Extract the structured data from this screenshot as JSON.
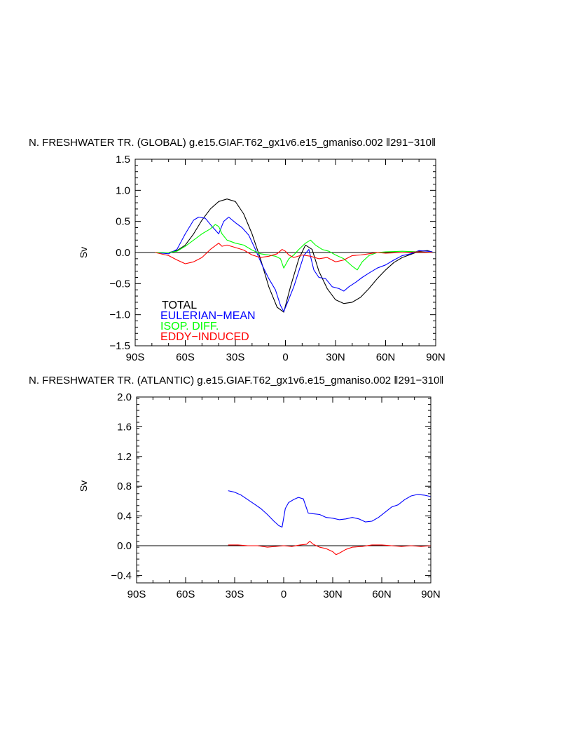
{
  "chart_data": [
    {
      "type": "line",
      "title": "N. FRESHWATER TR. (GLOBAL) g.e15.GIAF.T62_gx1v6.e15_gmaniso.002 ‖291−310‖",
      "xlabel": "",
      "ylabel": "Sv",
      "xlim": [
        -90,
        90
      ],
      "ylim": [
        -1.5,
        1.5
      ],
      "xticks": [
        -90,
        -60,
        -30,
        0,
        30,
        60,
        90
      ],
      "xtick_labels": [
        "90S",
        "60S",
        "30S",
        "0",
        "30N",
        "60N",
        "90N"
      ],
      "yticks": [
        -1.5,
        -1.0,
        -0.5,
        0.0,
        0.5,
        1.0,
        1.5
      ],
      "ytick_labels": [
        "−1.5",
        "−1.0",
        "−0.5",
        "0.0",
        "0.5",
        "1.0",
        "1.5"
      ],
      "legend": [
        {
          "label": "TOTAL",
          "color": "#000000"
        },
        {
          "label": "EULERIAN−MEAN",
          "color": "#0000ff"
        },
        {
          "label": "ISOP. DIFF.",
          "color": "#00ff00"
        },
        {
          "label": "EDDY−INDUCED",
          "color": "#ff0000"
        }
      ],
      "series": [
        {
          "name": "TOTAL",
          "color": "#000000",
          "x": [
            -78,
            -70,
            -65,
            -60,
            -55,
            -50,
            -45,
            -40,
            -35,
            -30,
            -25,
            -20,
            -15,
            -10,
            -5,
            -1,
            3,
            8,
            12,
            16,
            20,
            25,
            30,
            35,
            40,
            45,
            50,
            55,
            60,
            65,
            70,
            75,
            80,
            85,
            88
          ],
          "y": [
            0,
            0,
            0.03,
            0.12,
            0.3,
            0.52,
            0.7,
            0.82,
            0.86,
            0.82,
            0.62,
            0.3,
            -0.1,
            -0.55,
            -0.88,
            -0.96,
            -0.55,
            -0.1,
            0.12,
            0.05,
            -0.3,
            -0.58,
            -0.76,
            -0.82,
            -0.8,
            -0.72,
            -0.58,
            -0.42,
            -0.28,
            -0.16,
            -0.08,
            -0.03,
            0.02,
            0.03,
            0.01
          ]
        },
        {
          "name": "EULERIAN-MEAN",
          "color": "#0000ff",
          "x": [
            -78,
            -70,
            -65,
            -60,
            -55,
            -52,
            -48,
            -44,
            -40,
            -37,
            -34,
            -30,
            -26,
            -22,
            -18,
            -14,
            -10,
            -6,
            -3,
            -1,
            2,
            5,
            8,
            11,
            14,
            17,
            20,
            24,
            28,
            32,
            35,
            38,
            42,
            46,
            50,
            55,
            60,
            65,
            70,
            75,
            80,
            85,
            88
          ],
          "y": [
            0,
            -0.02,
            0.05,
            0.3,
            0.52,
            0.57,
            0.55,
            0.42,
            0.3,
            0.5,
            0.57,
            0.48,
            0.4,
            0.28,
            0.05,
            -0.2,
            -0.42,
            -0.6,
            -0.85,
            -0.95,
            -0.75,
            -0.55,
            -0.3,
            -0.05,
            0.05,
            -0.28,
            -0.4,
            -0.42,
            -0.55,
            -0.58,
            -0.62,
            -0.55,
            -0.48,
            -0.4,
            -0.33,
            -0.25,
            -0.2,
            -0.12,
            -0.05,
            -0.02,
            0.03,
            0.02,
            0.01
          ]
        },
        {
          "name": "ISOP. DIFF.",
          "color": "#00ff00",
          "x": [
            -78,
            -70,
            -65,
            -60,
            -55,
            -50,
            -45,
            -42,
            -40,
            -38,
            -35,
            -30,
            -25,
            -20,
            -15,
            -10,
            -6,
            -3,
            -1,
            2,
            5,
            8,
            12,
            15,
            18,
            22,
            26,
            30,
            35,
            40,
            43,
            46,
            50,
            55,
            60,
            70,
            80,
            88
          ],
          "y": [
            0,
            0,
            0.02,
            0.1,
            0.2,
            0.3,
            0.38,
            0.45,
            0.42,
            0.3,
            0.2,
            0.15,
            0.12,
            0.04,
            -0.02,
            -0.04,
            -0.06,
            -0.1,
            -0.25,
            -0.1,
            -0.04,
            0.05,
            0.15,
            0.2,
            0.12,
            0.05,
            0.02,
            -0.04,
            -0.1,
            -0.22,
            -0.28,
            -0.15,
            -0.05,
            0,
            0.01,
            0.02,
            0.01,
            0
          ]
        },
        {
          "name": "EDDY-INDUCED",
          "color": "#ff0000",
          "x": [
            -78,
            -70,
            -65,
            -60,
            -55,
            -50,
            -45,
            -40,
            -38,
            -35,
            -30,
            -25,
            -20,
            -15,
            -10,
            -5,
            -2,
            0,
            2,
            5,
            10,
            15,
            20,
            25,
            30,
            35,
            40,
            45,
            50,
            55,
            60,
            70,
            80,
            88
          ],
          "y": [
            0,
            -0.05,
            -0.12,
            -0.18,
            -0.15,
            -0.08,
            0.05,
            0.15,
            0.1,
            0.12,
            0.08,
            0.04,
            -0.04,
            -0.08,
            -0.06,
            -0.02,
            0.05,
            0.02,
            -0.04,
            -0.08,
            -0.04,
            -0.06,
            -0.1,
            -0.08,
            -0.15,
            -0.12,
            -0.05,
            -0.04,
            -0.02,
            0,
            -0.01,
            0,
            0.01,
            0
          ]
        }
      ]
    },
    {
      "type": "line",
      "title": "N. FRESHWATER TR. (ATLANTIC) g.e15.GIAF.T62_gx1v6.e15_gmaniso.002 ‖291−310‖",
      "xlabel": "",
      "ylabel": "Sv",
      "xlim": [
        -90,
        90
      ],
      "ylim": [
        -0.5,
        2.0
      ],
      "xticks": [
        -90,
        -60,
        -30,
        0,
        30,
        60,
        90
      ],
      "xtick_labels": [
        "90S",
        "60S",
        "30S",
        "0",
        "30N",
        "60N",
        "90N"
      ],
      "yticks": [
        -0.4,
        0.0,
        0.4,
        0.8,
        1.2,
        1.6,
        2.0
      ],
      "ytick_labels": [
        "−0.4",
        "0.0",
        "0.4",
        "0.8",
        "1.2",
        "1.6",
        "2.0"
      ],
      "series": [
        {
          "name": "EULERIAN-MEAN",
          "color": "#0000ff",
          "x": [
            -34,
            -30,
            -26,
            -22,
            -18,
            -14,
            -10,
            -6,
            -3,
            -1,
            1,
            3,
            6,
            9,
            12,
            15,
            18,
            22,
            26,
            30,
            34,
            38,
            42,
            46,
            50,
            54,
            58,
            62,
            66,
            70,
            74,
            78,
            82,
            86,
            90
          ],
          "y": [
            0.74,
            0.72,
            0.68,
            0.62,
            0.56,
            0.5,
            0.42,
            0.33,
            0.27,
            0.25,
            0.5,
            0.58,
            0.62,
            0.65,
            0.63,
            0.44,
            0.43,
            0.42,
            0.38,
            0.37,
            0.35,
            0.36,
            0.38,
            0.36,
            0.32,
            0.33,
            0.38,
            0.45,
            0.52,
            0.55,
            0.62,
            0.67,
            0.69,
            0.68,
            0.66
          ]
        },
        {
          "name": "EDDY-INDUCED",
          "color": "#ff0000",
          "x": [
            -34,
            -28,
            -22,
            -16,
            -10,
            -5,
            0,
            5,
            10,
            14,
            16,
            18,
            22,
            26,
            30,
            32,
            34,
            38,
            42,
            48,
            54,
            60,
            66,
            72,
            78,
            84,
            90
          ],
          "y": [
            0.01,
            0.01,
            0,
            0,
            -0.02,
            -0.01,
            0,
            -0.01,
            0.01,
            0.02,
            0.06,
            0.02,
            -0.02,
            -0.04,
            -0.08,
            -0.12,
            -0.1,
            -0.05,
            -0.02,
            -0.01,
            0.01,
            0.01,
            0,
            -0.01,
            0,
            -0.01,
            0
          ]
        }
      ]
    }
  ]
}
